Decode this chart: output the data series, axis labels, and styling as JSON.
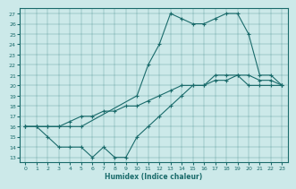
{
  "xlabel": "Humidex (Indice chaleur)",
  "xlim": [
    -0.5,
    23.5
  ],
  "ylim": [
    12.5,
    27.5
  ],
  "yticks": [
    13,
    14,
    15,
    16,
    17,
    18,
    19,
    20,
    21,
    22,
    23,
    24,
    25,
    26,
    27
  ],
  "xticks": [
    0,
    1,
    2,
    3,
    4,
    5,
    6,
    7,
    8,
    9,
    10,
    11,
    12,
    13,
    14,
    15,
    16,
    17,
    18,
    19,
    20,
    21,
    22,
    23
  ],
  "bg_color": "#cce9e9",
  "line_color": "#1a6b6b",
  "line1_x": [
    0,
    1,
    2,
    3,
    4,
    5,
    10,
    11,
    12,
    13,
    14,
    15,
    16,
    17,
    18,
    19,
    20,
    21,
    22,
    23
  ],
  "line1_y": [
    16,
    16,
    16,
    16,
    16,
    16,
    19,
    22,
    24,
    27,
    26.5,
    26,
    26,
    26.5,
    27,
    27,
    25,
    21,
    21,
    20
  ],
  "line2_x": [
    0,
    1,
    2,
    3,
    4,
    5,
    6,
    7,
    8,
    9,
    10,
    11,
    12,
    13,
    14,
    15,
    16,
    17,
    18,
    19,
    20,
    21,
    22,
    23
  ],
  "line2_y": [
    16,
    16,
    16,
    16,
    16.5,
    17,
    17,
    17.5,
    17.5,
    18,
    18,
    18.5,
    19,
    19.5,
    20,
    20,
    20,
    20.5,
    20.5,
    21,
    21,
    20.5,
    20.5,
    20
  ],
  "line3_x": [
    0,
    1,
    2,
    3,
    4,
    5,
    6,
    7,
    8,
    9,
    10,
    11,
    12,
    13,
    14,
    15,
    16,
    17,
    18,
    19,
    20,
    21,
    22,
    23
  ],
  "line3_y": [
    16,
    16,
    15,
    14,
    14,
    14,
    13,
    14,
    13,
    13,
    15,
    16,
    17,
    18,
    19,
    20,
    20,
    21,
    21,
    21,
    20,
    20,
    20,
    20
  ]
}
